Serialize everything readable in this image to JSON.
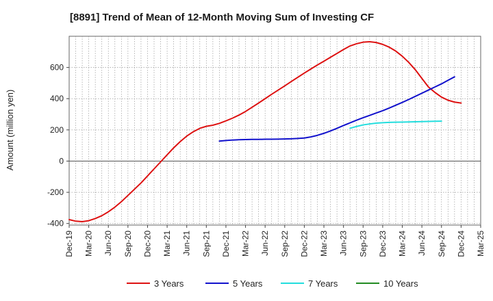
{
  "chart_data": {
    "type": "line",
    "title": "[8891]  Trend of Mean of 12-Month Moving Sum of Investing CF",
    "xlabel": "",
    "ylabel": "Amount (million yen)",
    "ylim": [
      -410,
      800
    ],
    "yticks": [
      -400,
      -200,
      0,
      200,
      400,
      600
    ],
    "x_tick_labels": [
      "Dec-19",
      "Mar-20",
      "Jun-20",
      "Sep-20",
      "Dec-20",
      "Mar-21",
      "Jun-21",
      "Sep-21",
      "Dec-21",
      "Mar-22",
      "Jun-22",
      "Sep-22",
      "Dec-22",
      "Mar-23",
      "Jun-23",
      "Sep-23",
      "Dec-23",
      "Mar-24",
      "Jun-24",
      "Sep-24",
      "Dec-24",
      "Mar-25"
    ],
    "grid": true,
    "legend_position": "bottom",
    "series": [
      {
        "name": "3 Years",
        "color": "#dd1111",
        "start": "Dec-19",
        "values": [
          -375,
          -385,
          -388,
          -382,
          -368,
          -350,
          -325,
          -295,
          -260,
          -220,
          -180,
          -140,
          -95,
          -50,
          -5,
          40,
          85,
          125,
          160,
          188,
          210,
          223,
          230,
          242,
          258,
          275,
          295,
          318,
          345,
          372,
          400,
          428,
          455,
          482,
          510,
          537,
          564,
          590,
          616,
          640,
          665,
          690,
          715,
          738,
          752,
          762,
          765,
          760,
          748,
          730,
          705,
          672,
          632,
          585,
          530,
          475,
          440,
          410,
          390,
          378,
          372
        ]
      },
      {
        "name": "5 Years",
        "color": "#1111cc",
        "start": "Nov-21",
        "values": [
          128,
          132,
          135,
          137,
          138,
          139,
          139,
          140,
          140,
          141,
          142,
          143,
          145,
          148,
          155,
          165,
          178,
          193,
          210,
          228,
          245,
          262,
          278,
          293,
          308,
          323,
          340,
          358,
          376,
          395,
          415,
          435,
          455,
          475,
          495,
          518,
          540
        ]
      },
      {
        "name": "7 Years",
        "color": "#22dddd",
        "start": "Jul-23",
        "values": [
          210,
          222,
          232,
          238,
          243,
          246,
          248,
          249,
          250,
          251,
          252,
          253,
          254,
          255,
          256
        ]
      },
      {
        "name": "10 Years",
        "color": "#228b22",
        "start": "",
        "values": []
      }
    ]
  }
}
